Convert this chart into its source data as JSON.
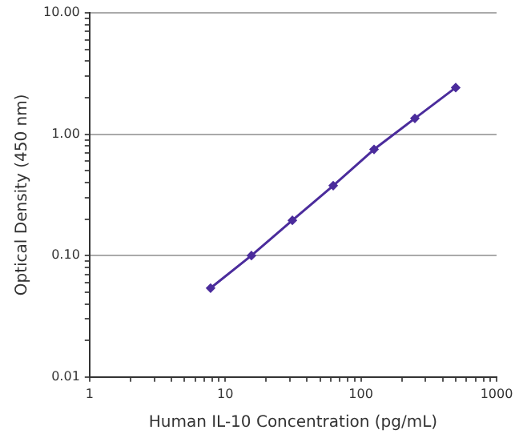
{
  "chart_data": {
    "type": "line",
    "xlabel": "Human IL-10 Concentration (pg/mL)",
    "ylabel": "Optical Density (450 nm)",
    "x": [
      7.8,
      15.6,
      31.25,
      62.5,
      125,
      250,
      500
    ],
    "series": [
      {
        "color": "#4b2c9c",
        "values": [
          0.054,
          0.1,
          0.195,
          0.377,
          0.75,
          1.35,
          2.42
        ]
      }
    ],
    "log": "xy",
    "xlim": [
      1,
      1000
    ],
    "ylim": [
      0.01,
      10
    ],
    "xticks": [
      1,
      {
        "value": 2,
        "label": null
      },
      {
        "value": 3,
        "label": null
      },
      {
        "value": 4,
        "label": null
      },
      {
        "value": 5,
        "label": null
      },
      {
        "value": 6,
        "label": null
      },
      {
        "value": 7,
        "label": null
      },
      {
        "value": 8,
        "label": null
      },
      {
        "value": 9,
        "label": null
      },
      10,
      {
        "value": 20,
        "label": null
      },
      {
        "value": 30,
        "label": null
      },
      {
        "value": 40,
        "label": null
      },
      {
        "value": 50,
        "label": null
      },
      {
        "value": 60,
        "label": null
      },
      {
        "value": 70,
        "label": null
      },
      {
        "value": 80,
        "label": null
      },
      {
        "value": 90,
        "label": null
      },
      100,
      {
        "value": 200,
        "label": null
      },
      {
        "value": 300,
        "label": null
      },
      {
        "value": 400,
        "label": null
      },
      {
        "value": 500,
        "label": null
      },
      {
        "value": 600,
        "label": null
      },
      {
        "value": 700,
        "label": null
      },
      {
        "value": 800,
        "label": null
      },
      {
        "value": 900,
        "label": null
      },
      1000
    ],
    "yticks": [
      {
        "value": 0.01,
        "label": "0.01"
      },
      {
        "value": 0.02,
        "label": null
      },
      {
        "value": 0.03,
        "label": null
      },
      {
        "value": 0.04,
        "label": null
      },
      {
        "value": 0.05,
        "label": null
      },
      {
        "value": 0.06,
        "label": null
      },
      {
        "value": 0.07,
        "label": null
      },
      {
        "value": 0.08,
        "label": null
      },
      {
        "value": 0.09,
        "label": null
      },
      {
        "value": 0.1,
        "label": "0.10"
      },
      {
        "value": 0.2,
        "label": null
      },
      {
        "value": 0.3,
        "label": null
      },
      {
        "value": 0.4,
        "label": null
      },
      {
        "value": 0.5,
        "label": null
      },
      {
        "value": 0.6,
        "label": null
      },
      {
        "value": 0.7,
        "label": null
      },
      {
        "value": 0.8,
        "label": null
      },
      {
        "value": 0.9,
        "label": null
      },
      {
        "value": 1,
        "label": "1.00"
      },
      {
        "value": 2,
        "label": null
      },
      {
        "value": 3,
        "label": null
      },
      {
        "value": 4,
        "label": null
      },
      {
        "value": 5,
        "label": null
      },
      {
        "value": 6,
        "label": null
      },
      {
        "value": 7,
        "label": null
      },
      {
        "value": 8,
        "label": null
      },
      {
        "value": 9,
        "label": null
      },
      {
        "value": 10,
        "label": "10.00"
      }
    ],
    "grid": "y",
    "legend": false,
    "marker": "diamond",
    "line_style": "solid"
  }
}
